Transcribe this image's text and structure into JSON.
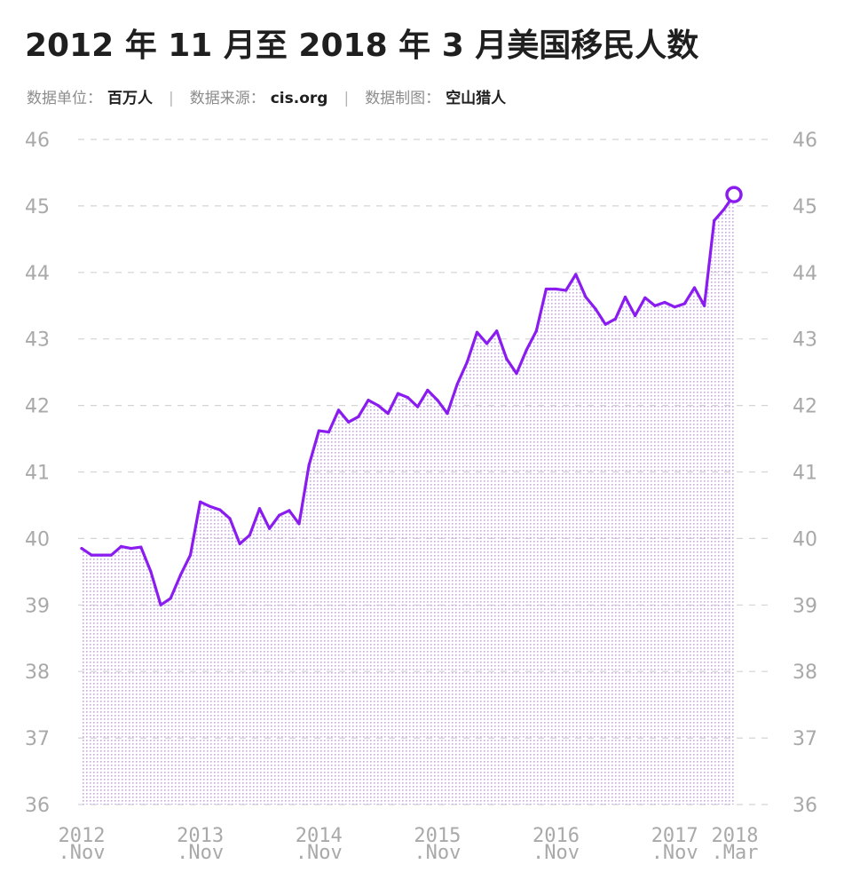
{
  "header": {
    "title": "2012 年 11 月至 2018 年 3 月美国移民人数",
    "unit_label": "数据单位：",
    "unit_value": "百万人",
    "source_label": "数据来源：",
    "source_value": "cis.org",
    "maker_label": "数据制图：",
    "maker_value": "空山猎人",
    "separator": "|"
  },
  "colors": {
    "line": "#8a1cf0",
    "fill_dots": "#c9a6ec",
    "grid": "#d4d4d4",
    "tick_text": "#a9a9a9"
  },
  "chart_data": {
    "type": "area",
    "title": "2012 年 11 月至 2018 年 3 月美国移民人数",
    "ylim": [
      36,
      46
    ],
    "y_ticks": [
      36,
      37,
      38,
      39,
      40,
      41,
      42,
      43,
      44,
      45,
      46
    ],
    "y_tick_labels": [
      "36",
      "37",
      "38",
      "39",
      "40",
      "41",
      "42",
      "43",
      "44",
      "45",
      "46"
    ],
    "x_tick_labels": [
      {
        "year": "2012",
        "month": ".Nov"
      },
      {
        "year": "2013",
        "month": ".Nov"
      },
      {
        "year": "2014",
        "month": ".Nov"
      },
      {
        "year": "2015",
        "month": ".Nov"
      },
      {
        "year": "2016",
        "month": ".Nov"
      },
      {
        "year": "2017",
        "month": ".Nov"
      },
      {
        "year": "2018",
        "month": ".Mar"
      }
    ],
    "grid": true,
    "series": [
      {
        "values": [
          39.85,
          39.75,
          39.75,
          39.75,
          39.88,
          39.85,
          39.87,
          39.5,
          39.0,
          39.1,
          39.45,
          39.75,
          40.55,
          40.48,
          40.43,
          40.3,
          39.92,
          40.05,
          40.45,
          40.15,
          40.35,
          40.42,
          40.22,
          41.1,
          41.62,
          41.6,
          41.93,
          41.75,
          41.83,
          42.08,
          42.0,
          41.88,
          42.18,
          42.12,
          41.98,
          42.23,
          42.08,
          41.88,
          42.32,
          42.65,
          43.1,
          42.93,
          43.12,
          42.7,
          42.48,
          42.83,
          43.12,
          43.75,
          43.75,
          43.73,
          43.97,
          43.63,
          43.45,
          43.22,
          43.3,
          43.63,
          43.35,
          43.62,
          43.5,
          43.55,
          43.48,
          43.53,
          43.77,
          43.5,
          44.78,
          44.95,
          45.17
        ]
      }
    ]
  }
}
